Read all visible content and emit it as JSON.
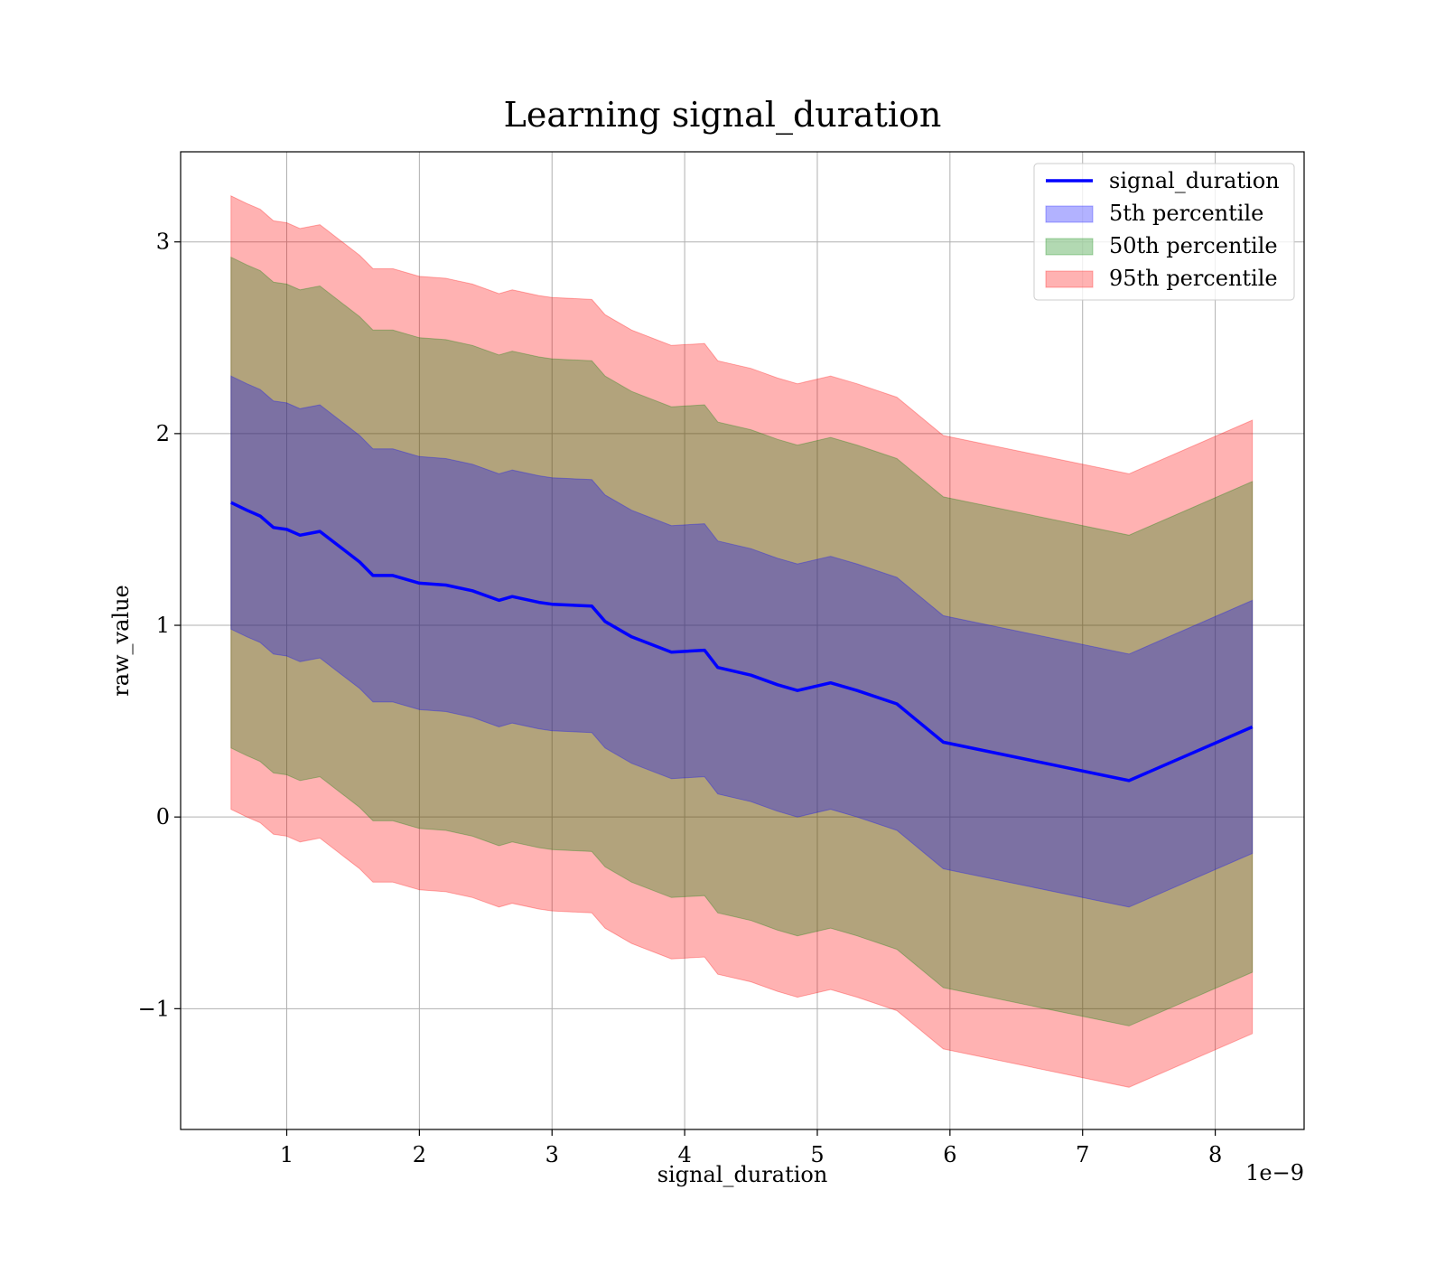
{
  "chart_data": {
    "type": "area",
    "title": "Learning signal_duration",
    "xlabel": "signal_duration",
    "ylabel": "raw_value",
    "x_offset_label": "1e−9",
    "xlim": [
      0.2,
      8.67
    ],
    "ylim": [
      -1.63,
      3.47
    ],
    "xticks": [
      1,
      2,
      3,
      4,
      5,
      6,
      7,
      8
    ],
    "xtick_labels": [
      "1",
      "2",
      "3",
      "4",
      "5",
      "6",
      "7",
      "8"
    ],
    "yticks": [
      -1,
      0,
      1,
      2,
      3
    ],
    "ytick_labels": [
      "−1",
      "0",
      "1",
      "2",
      "3"
    ],
    "grid": true,
    "legend_position": "top-right",
    "x": [
      0.58,
      0.7,
      0.8,
      0.9,
      1.0,
      1.1,
      1.25,
      1.4,
      1.55,
      1.65,
      1.8,
      2.0,
      2.2,
      2.4,
      2.6,
      2.7,
      2.9,
      3.0,
      3.3,
      3.4,
      3.6,
      3.9,
      4.15,
      4.25,
      4.5,
      4.7,
      4.85,
      5.1,
      5.3,
      5.6,
      5.95,
      7.35,
      8.28
    ],
    "series": [
      {
        "name": "signal_duration",
        "kind": "line",
        "color": "#0000ff",
        "values": [
          1.64,
          1.6,
          1.57,
          1.51,
          1.5,
          1.47,
          1.49,
          1.41,
          1.33,
          1.26,
          1.26,
          1.22,
          1.21,
          1.18,
          1.13,
          1.15,
          1.12,
          1.11,
          1.1,
          1.02,
          0.94,
          0.86,
          0.87,
          0.78,
          0.74,
          0.69,
          0.66,
          0.7,
          0.66,
          0.59,
          0.39,
          0.19,
          0.47
        ]
      },
      {
        "name": "5th percentile",
        "kind": "band",
        "color": "#0000ff",
        "lower": [
          0.98,
          0.94,
          0.91,
          0.85,
          0.84,
          0.81,
          0.83,
          0.75,
          0.67,
          0.6,
          0.6,
          0.56,
          0.55,
          0.52,
          0.47,
          0.49,
          0.46,
          0.45,
          0.44,
          0.36,
          0.28,
          0.2,
          0.21,
          0.12,
          0.08,
          0.03,
          0.0,
          0.04,
          0.0,
          -0.07,
          -0.27,
          -0.47,
          -0.19
        ],
        "upper": [
          2.3,
          2.26,
          2.23,
          2.17,
          2.16,
          2.13,
          2.15,
          2.07,
          1.99,
          1.92,
          1.92,
          1.88,
          1.87,
          1.84,
          1.79,
          1.81,
          1.78,
          1.77,
          1.76,
          1.68,
          1.6,
          1.52,
          1.53,
          1.44,
          1.4,
          1.35,
          1.32,
          1.36,
          1.32,
          1.25,
          1.05,
          0.85,
          1.13
        ]
      },
      {
        "name": "50th percentile",
        "kind": "band",
        "color": "#008000",
        "lower": [
          0.36,
          0.32,
          0.29,
          0.23,
          0.22,
          0.19,
          0.21,
          0.13,
          0.05,
          -0.02,
          -0.02,
          -0.06,
          -0.07,
          -0.1,
          -0.15,
          -0.13,
          -0.16,
          -0.17,
          -0.18,
          -0.26,
          -0.34,
          -0.42,
          -0.41,
          -0.5,
          -0.54,
          -0.59,
          -0.62,
          -0.58,
          -0.62,
          -0.69,
          -0.89,
          -1.09,
          -0.81
        ],
        "upper": [
          2.92,
          2.88,
          2.85,
          2.79,
          2.78,
          2.75,
          2.77,
          2.69,
          2.61,
          2.54,
          2.54,
          2.5,
          2.49,
          2.46,
          2.41,
          2.43,
          2.4,
          2.39,
          2.38,
          2.3,
          2.22,
          2.14,
          2.15,
          2.06,
          2.02,
          1.97,
          1.94,
          1.98,
          1.94,
          1.87,
          1.67,
          1.47,
          1.75
        ]
      },
      {
        "name": "95th percentile",
        "kind": "band",
        "color": "#ff0000",
        "lower": [
          0.04,
          0.0,
          -0.03,
          -0.09,
          -0.1,
          -0.13,
          -0.11,
          -0.19,
          -0.27,
          -0.34,
          -0.34,
          -0.38,
          -0.39,
          -0.42,
          -0.47,
          -0.45,
          -0.48,
          -0.49,
          -0.5,
          -0.58,
          -0.66,
          -0.74,
          -0.73,
          -0.82,
          -0.86,
          -0.91,
          -0.94,
          -0.9,
          -0.94,
          -1.01,
          -1.21,
          -1.41,
          -1.13
        ],
        "upper": [
          3.24,
          3.2,
          3.17,
          3.11,
          3.1,
          3.07,
          3.09,
          3.01,
          2.93,
          2.86,
          2.86,
          2.82,
          2.81,
          2.78,
          2.73,
          2.75,
          2.72,
          2.71,
          2.7,
          2.62,
          2.54,
          2.46,
          2.47,
          2.38,
          2.34,
          2.29,
          2.26,
          2.3,
          2.26,
          2.19,
          1.99,
          1.79,
          2.07
        ]
      }
    ]
  }
}
